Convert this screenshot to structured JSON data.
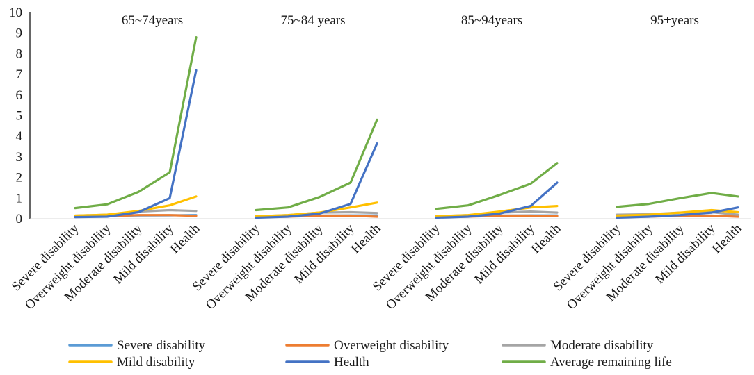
{
  "chart_data": {
    "type": "line",
    "title": "",
    "xlabel": "",
    "ylabel": "",
    "ylim": [
      0,
      10
    ],
    "yticks": [
      0,
      1,
      2,
      3,
      4,
      5,
      6,
      7,
      8,
      9,
      10
    ],
    "grid": false,
    "legend_position": "bottom",
    "categories": [
      "Severe disability",
      "Overweight disability",
      "Moderate disability",
      "Mild disability",
      "Health"
    ],
    "panels": [
      {
        "title": "65~74years",
        "series": [
          {
            "name": "Severe disability",
            "color": "#5b9bd5",
            "values": [
              0.12,
              0.14,
              0.16,
              0.17,
              0.18
            ]
          },
          {
            "name": "Overweight disability",
            "color": "#ed7d31",
            "values": [
              0.1,
              0.12,
              0.18,
              0.18,
              0.14
            ]
          },
          {
            "name": "Moderate disability",
            "color": "#a5a5a5",
            "values": [
              0.15,
              0.2,
              0.35,
              0.42,
              0.38
            ]
          },
          {
            "name": "Mild disability",
            "color": "#ffc000",
            "values": [
              0.15,
              0.2,
              0.38,
              0.65,
              1.08
            ]
          },
          {
            "name": "Health",
            "color": "#4472c4",
            "values": [
              0.08,
              0.1,
              0.32,
              1.0,
              7.2
            ]
          },
          {
            "name": "Average remaining life",
            "color": "#70ad47",
            "values": [
              0.52,
              0.7,
              1.3,
              2.25,
              8.8
            ]
          }
        ]
      },
      {
        "title": "75~84 years",
        "series": [
          {
            "name": "Severe disability",
            "color": "#5b9bd5",
            "values": [
              0.1,
              0.13,
              0.15,
              0.16,
              0.16
            ]
          },
          {
            "name": "Overweight disability",
            "color": "#ed7d31",
            "values": [
              0.08,
              0.1,
              0.15,
              0.15,
              0.1
            ]
          },
          {
            "name": "Moderate disability",
            "color": "#a5a5a5",
            "values": [
              0.12,
              0.18,
              0.3,
              0.32,
              0.28
            ]
          },
          {
            "name": "Mild disability",
            "color": "#ffc000",
            "values": [
              0.12,
              0.18,
              0.3,
              0.55,
              0.78
            ]
          },
          {
            "name": "Health",
            "color": "#4472c4",
            "values": [
              0.05,
              0.1,
              0.25,
              0.72,
              3.65
            ]
          },
          {
            "name": "Average remaining life",
            "color": "#70ad47",
            "values": [
              0.42,
              0.55,
              1.05,
              1.75,
              4.8
            ]
          }
        ]
      },
      {
        "title": "85~94years",
        "series": [
          {
            "name": "Severe disability",
            "color": "#5b9bd5",
            "values": [
              0.1,
              0.12,
              0.15,
              0.16,
              0.16
            ]
          },
          {
            "name": "Overweight disability",
            "color": "#ed7d31",
            "values": [
              0.08,
              0.1,
              0.15,
              0.15,
              0.12
            ]
          },
          {
            "name": "Moderate disability",
            "color": "#a5a5a5",
            "values": [
              0.12,
              0.18,
              0.3,
              0.35,
              0.3
            ]
          },
          {
            "name": "Mild disability",
            "color": "#ffc000",
            "values": [
              0.12,
              0.18,
              0.35,
              0.55,
              0.62
            ]
          },
          {
            "name": "Health",
            "color": "#4472c4",
            "values": [
              0.05,
              0.1,
              0.25,
              0.62,
              1.75
            ]
          },
          {
            "name": "Average remaining life",
            "color": "#70ad47",
            "values": [
              0.48,
              0.65,
              1.15,
              1.7,
              2.7
            ]
          }
        ]
      },
      {
        "title": "95+years",
        "series": [
          {
            "name": "Severe disability",
            "color": "#5b9bd5",
            "values": [
              0.1,
              0.12,
              0.15,
              0.15,
              0.12
            ]
          },
          {
            "name": "Overweight disability",
            "color": "#ed7d31",
            "values": [
              0.08,
              0.1,
              0.15,
              0.15,
              0.1
            ]
          },
          {
            "name": "Moderate disability",
            "color": "#a5a5a5",
            "values": [
              0.2,
              0.22,
              0.3,
              0.32,
              0.2
            ]
          },
          {
            "name": "Mild disability",
            "color": "#ffc000",
            "values": [
              0.15,
              0.2,
              0.3,
              0.42,
              0.32
            ]
          },
          {
            "name": "Health",
            "color": "#4472c4",
            "values": [
              0.05,
              0.1,
              0.18,
              0.3,
              0.55
            ]
          },
          {
            "name": "Average remaining life",
            "color": "#70ad47",
            "values": [
              0.58,
              0.72,
              1.0,
              1.25,
              1.08
            ]
          }
        ]
      }
    ],
    "legend": [
      {
        "name": "Severe disability",
        "color": "#5b9bd5"
      },
      {
        "name": "Overweight disability",
        "color": "#ed7d31"
      },
      {
        "name": "Moderate disability",
        "color": "#a5a5a5"
      },
      {
        "name": "Mild disability",
        "color": "#ffc000"
      },
      {
        "name": "Health",
        "color": "#4472c4"
      },
      {
        "name": "Average remaining life",
        "color": "#70ad47"
      }
    ]
  }
}
